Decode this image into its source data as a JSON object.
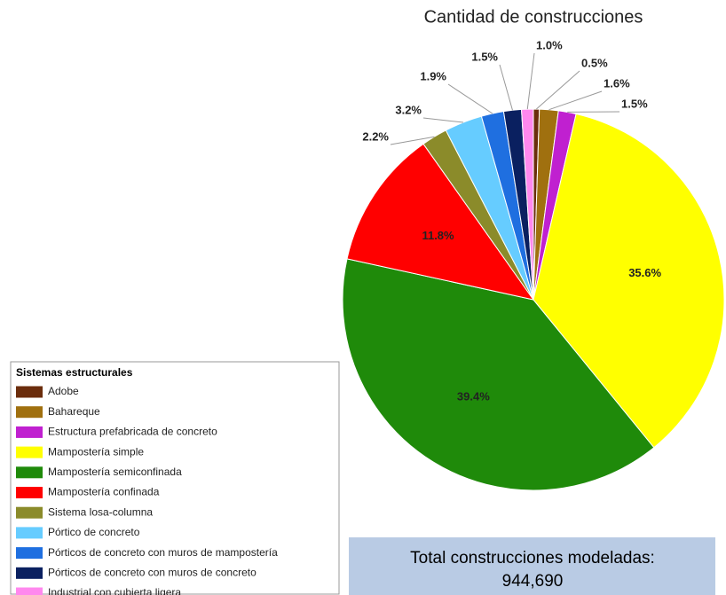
{
  "chart_data": {
    "type": "pie",
    "title": "Cantidad de construcciones",
    "legend_title": "Sistemas estructurales",
    "categories": [
      "Adobe",
      "Bahareque",
      "Estructura prefabricada de concreto",
      "Mampostería simple",
      "Mampostería semiconfinada",
      "Mampostería confinada",
      "Sistema losa-columna",
      "Pórtico de concreto",
      "Pórticos de concreto con muros de mampostería",
      "Pórticos de concreto con muros de concreto",
      "Industrial con cubierta ligera"
    ],
    "values": [
      0.5,
      1.6,
      1.5,
      35.6,
      39.4,
      11.8,
      2.2,
      3.2,
      1.9,
      1.5,
      1.0
    ],
    "value_labels": [
      "0.5%",
      "1.6%",
      "1.5%",
      "35.6%",
      "39.4%",
      "11.8%",
      "2.2%",
      "3.2%",
      "1.9%",
      "1.5%",
      "1.0%"
    ],
    "colors": [
      "#6b2d0c",
      "#a0700f",
      "#c020d0",
      "#ffff00",
      "#1f8a0a",
      "#ff0000",
      "#8b8b2a",
      "#66ccff",
      "#1f6fe0",
      "#0a2060",
      "#ff88ee"
    ],
    "legend": "bottom-left"
  },
  "total": {
    "label": "Total construcciones modeladas:",
    "value": "944,690"
  }
}
